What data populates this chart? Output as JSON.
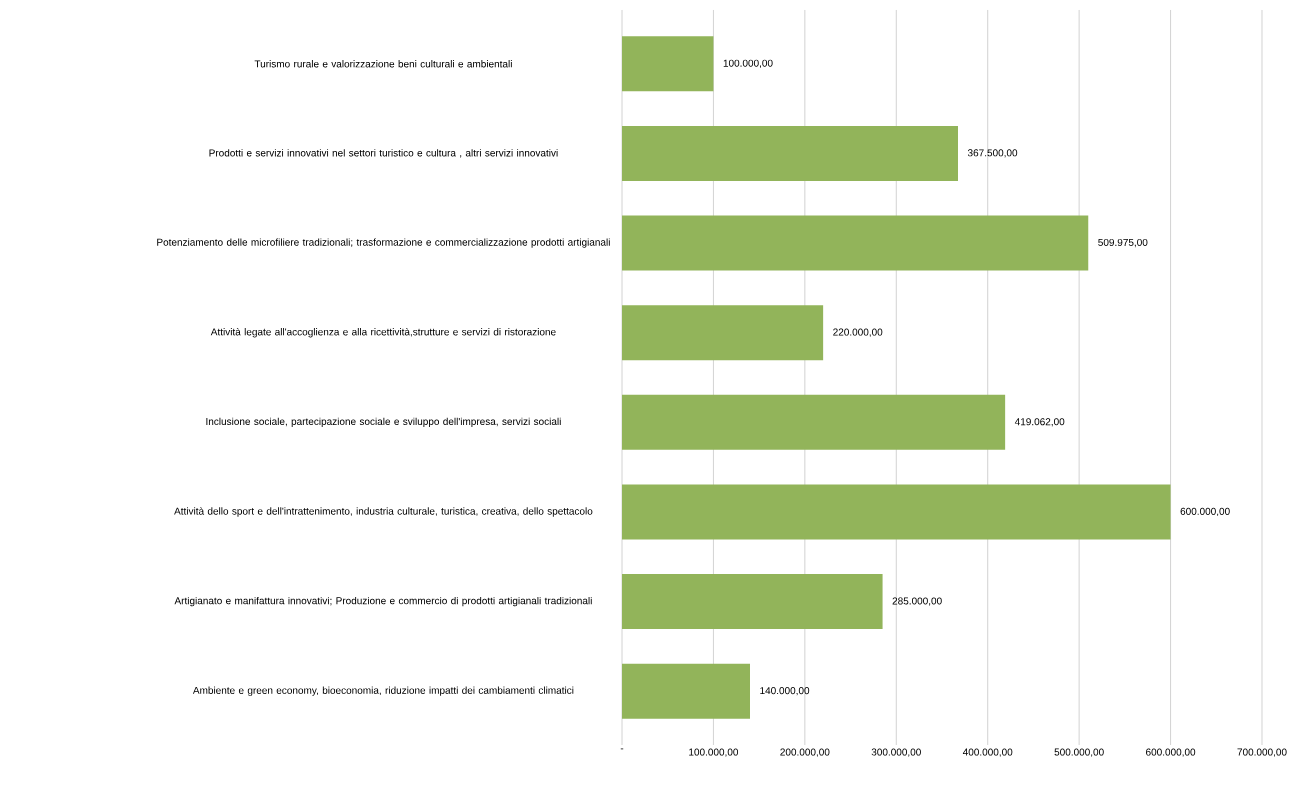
{
  "chart_data": {
    "type": "bar",
    "orientation": "horizontal",
    "categories": [
      "Turismo rurale e valorizzazione beni culturali e ambientali",
      "Prodotti e servizi innovativi nel settori turistico e cultura , altri servizi innovativi",
      "Potenziamento delle microfiliere tradizionali; trasformazione e commercializzazione prodotti artigianali",
      "Attività legate all'accoglienza e alla ricettività,strutture e servizi di ristorazione",
      "Inclusione sociale, partecipazione sociale e sviluppo dell'impresa, servizi sociali",
      "Attività dello sport  e dell'intrattenimento, industria culturale, turistica, creativa, dello spettacolo",
      "Artigianato e manifattura innovativi; Produzione e commercio di prodotti artigianali  tradizionali",
      "Ambiente e green economy, bioeconomia, riduzione impatti dei cambiamenti climatici"
    ],
    "values": [
      100000,
      367500,
      509975,
      220000,
      419062,
      600000,
      285000,
      140000
    ],
    "value_labels": [
      "100.000,00",
      "367.500,00",
      "509.975,00",
      "220.000,00",
      "419.062,00",
      "600.000,00",
      "285.000,00",
      "140.000,00"
    ],
    "color": "#92b45a",
    "xlim": [
      0,
      700000
    ],
    "xticks": [
      {
        "value": 0,
        "label": "-"
      },
      {
        "value": 100000,
        "label": "100.000,00"
      },
      {
        "value": 200000,
        "label": "200.000,00"
      },
      {
        "value": 300000,
        "label": "300.000,00"
      },
      {
        "value": 400000,
        "label": "400.000,00"
      },
      {
        "value": 500000,
        "label": "500.000,00"
      },
      {
        "value": 600000,
        "label": "600.000,00"
      },
      {
        "value": 700000,
        "label": "700.000,00"
      }
    ],
    "grid": "x"
  }
}
